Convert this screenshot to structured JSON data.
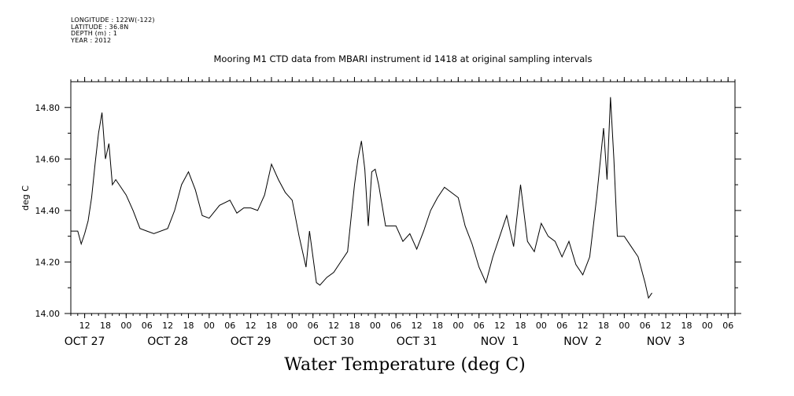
{
  "meta": {
    "longitude": "LONGITUDE : 122W(-122)",
    "latitude": "LATITUDE : 36.8N",
    "depth": "DEPTH (m) : 1",
    "year": "YEAR : 2012"
  },
  "chart_data": {
    "type": "line",
    "title": "Mooring M1 CTD data from MBARI instrument id 1418 at original sampling intervals",
    "xlabel": "Water Temperature (deg C)",
    "ylabel": "deg C",
    "ylim": [
      14.0,
      14.9
    ],
    "xlim_hours": [
      8,
      200
    ],
    "y_ticks": [
      "14.00",
      "14.20",
      "14.40",
      "14.60",
      "14.80"
    ],
    "hour_tick_labels": [
      "12",
      "18",
      "00",
      "06",
      "12",
      "18",
      "00",
      "06",
      "12",
      "18",
      "00",
      "06",
      "12",
      "18",
      "00",
      "06",
      "12",
      "18",
      "00",
      "06",
      "12",
      "18",
      "00",
      "06",
      "12",
      "18",
      "00",
      "06",
      "12",
      "18",
      "00",
      "06"
    ],
    "day_labels": [
      "OCT 27",
      "OCT 28",
      "OCT 29",
      "OCT 30",
      "OCT 31",
      "NOV  1",
      "NOV  2",
      "NOV  3"
    ],
    "grid": false,
    "series": [
      {
        "x": [
          "2012-10-27T08:00",
          "2012-10-27T10:00",
          "2012-10-27T11:00",
          "2012-10-27T12:00",
          "2012-10-27T13:00",
          "2012-10-27T14:00",
          "2012-10-27T15:00",
          "2012-10-27T16:00",
          "2012-10-27T17:00",
          "2012-10-27T18:00",
          "2012-10-27T19:00",
          "2012-10-27T20:00",
          "2012-10-27T21:00",
          "2012-10-27T22:00",
          "2012-10-28T00:00",
          "2012-10-28T02:00",
          "2012-10-28T04:00",
          "2012-10-28T06:00",
          "2012-10-28T08:00",
          "2012-10-28T12:00",
          "2012-10-28T14:00",
          "2012-10-28T16:00",
          "2012-10-28T18:00",
          "2012-10-28T20:00",
          "2012-10-28T22:00",
          "2012-10-29T00:00",
          "2012-10-29T03:00",
          "2012-10-29T06:00",
          "2012-10-29T08:00",
          "2012-10-29T10:00",
          "2012-10-29T12:00",
          "2012-10-29T14:00",
          "2012-10-29T16:00",
          "2012-10-29T18:00",
          "2012-10-29T20:00",
          "2012-10-29T22:00",
          "2012-10-30T00:00",
          "2012-10-30T02:00",
          "2012-10-30T04:00",
          "2012-10-30T05:00",
          "2012-10-30T06:00",
          "2012-10-30T07:00",
          "2012-10-30T08:00",
          "2012-10-30T10:00",
          "2012-10-30T12:00",
          "2012-10-30T14:00",
          "2012-10-30T16:00",
          "2012-10-30T18:00",
          "2012-10-30T19:00",
          "2012-10-30T20:00",
          "2012-10-30T21:00",
          "2012-10-30T22:00",
          "2012-10-30T23:00",
          "2012-10-31T00:00",
          "2012-10-31T01:00",
          "2012-10-31T03:00",
          "2012-10-31T06:00",
          "2012-10-31T08:00",
          "2012-10-31T10:00",
          "2012-10-31T12:00",
          "2012-10-31T14:00",
          "2012-10-31T16:00",
          "2012-10-31T18:00",
          "2012-10-31T20:00",
          "2012-11-01T00:00",
          "2012-11-01T02:00",
          "2012-11-01T04:00",
          "2012-11-01T06:00",
          "2012-11-01T08:00",
          "2012-11-01T10:00",
          "2012-11-01T12:00",
          "2012-11-01T14:00",
          "2012-11-01T16:00",
          "2012-11-01T18:00",
          "2012-11-01T20:00",
          "2012-11-01T22:00",
          "2012-11-02T00:00",
          "2012-11-02T02:00",
          "2012-11-02T04:00",
          "2012-11-02T06:00",
          "2012-11-02T08:00",
          "2012-11-02T10:00",
          "2012-11-02T12:00",
          "2012-11-02T14:00",
          "2012-11-02T16:00",
          "2012-11-02T18:00",
          "2012-11-02T19:00",
          "2012-11-02T20:00",
          "2012-11-02T21:00",
          "2012-11-02T22:00",
          "2012-11-03T00:00",
          "2012-11-03T02:00",
          "2012-11-03T04:00",
          "2012-11-03T06:00",
          "2012-11-03T07:00",
          "2012-11-03T08:00"
        ],
        "values": [
          14.32,
          14.32,
          14.27,
          14.31,
          14.36,
          14.45,
          14.58,
          14.7,
          14.78,
          14.6,
          14.66,
          14.5,
          14.52,
          14.5,
          14.46,
          14.4,
          14.33,
          14.32,
          14.31,
          14.33,
          14.4,
          14.5,
          14.55,
          14.48,
          14.38,
          14.37,
          14.42,
          14.44,
          14.39,
          14.41,
          14.41,
          14.4,
          14.46,
          14.58,
          14.52,
          14.47,
          14.44,
          14.3,
          14.18,
          14.32,
          14.22,
          14.12,
          14.11,
          14.14,
          14.16,
          14.2,
          14.24,
          14.5,
          14.6,
          14.67,
          14.56,
          14.34,
          14.55,
          14.56,
          14.5,
          14.34,
          14.34,
          14.28,
          14.31,
          14.25,
          14.32,
          14.4,
          14.45,
          14.49,
          14.45,
          14.34,
          14.27,
          14.18,
          14.12,
          14.22,
          14.3,
          14.38,
          14.26,
          14.5,
          14.28,
          14.24,
          14.35,
          14.3,
          14.28,
          14.22,
          14.28,
          14.19,
          14.15,
          14.22,
          14.45,
          14.72,
          14.52,
          14.84,
          14.6,
          14.3,
          14.3,
          14.26,
          14.22,
          14.12,
          14.06,
          14.08
        ]
      }
    ]
  }
}
